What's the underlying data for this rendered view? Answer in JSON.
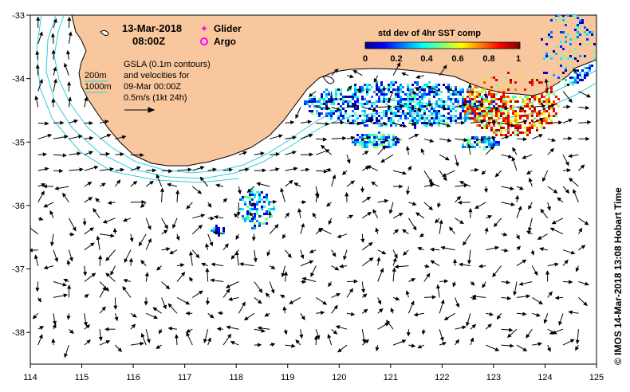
{
  "map": {
    "date_title": "13-Mar-2018",
    "time_title": "08:00Z",
    "legend": {
      "glider_label": "Glider",
      "argo_label": "Argo",
      "glider_color": "#ff00ff",
      "argo_color": "#ff00ff"
    },
    "gsla_text": {
      "line1": "GSLA (0.1m contours)",
      "line2": "and velocities for",
      "line3": "09-Mar 00:00Z",
      "line4": "0.5m/s (1kt 24h)"
    },
    "depth_labels": {
      "d200": "200m",
      "d1000": "1000m"
    },
    "colorbar": {
      "title": "std dev of 4hr SST comp",
      "tick_labels": [
        "0",
        "0.2",
        "0.4",
        "0.6",
        "0.8",
        "1"
      ],
      "colormap": "jet"
    },
    "credit": "©  IMOS 14-Mar-2018 13:08 Hobart Time",
    "axes": {
      "lon_ticks": [
        "114",
        "115",
        "116",
        "117",
        "118",
        "119",
        "120",
        "121",
        "122",
        "123",
        "124",
        "125"
      ],
      "lat_ticks": [
        "-33",
        "-34",
        "-35",
        "-36",
        "-37",
        "-38"
      ],
      "lon_range": [
        114,
        125
      ],
      "lat_range": [
        -38.5,
        -33
      ]
    },
    "colors": {
      "land": "#f9c79d",
      "isobath": "#33ccdd",
      "arrow": "#000000",
      "ocean": "#ffffff"
    }
  }
}
